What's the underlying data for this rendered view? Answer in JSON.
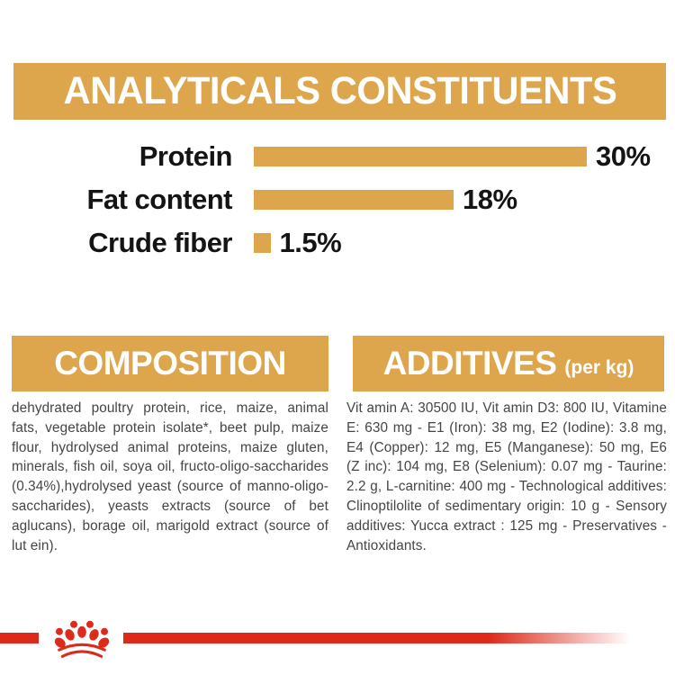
{
  "colors": {
    "gold": "#DDA64C",
    "red": "#DC2A1B",
    "ink": "#141414",
    "body": "#454545"
  },
  "chart_data": {
    "type": "bar",
    "orientation": "horizontal",
    "title": "ANALYTICALS CONSTITUENTS",
    "categories": [
      "Protein",
      "Fat content",
      "Crude fiber"
    ],
    "values": [
      30,
      18,
      1.5
    ],
    "value_labels": [
      "30%",
      "18%",
      "1.5%"
    ],
    "unit": "%",
    "xlim": [
      0,
      30
    ],
    "bar_color": "#DDA64C",
    "grid": false,
    "legend": false
  },
  "composition": {
    "title": "COMPOSITION",
    "body": "dehydrated poultry protein, rice, maize, animal fats, vegetable protein isolate*, beet pulp, maize flour, hydrolysed animal proteins, maize gluten, minerals, fish oil, soya oil, fructo-oligo-saccharides (0.34%),hydrolysed yeast (source of manno-oligo-saccharides), yeasts extracts (source of bet aglucans), borage oil, marigold extract (source of lut ein)."
  },
  "additives": {
    "title": "ADDITIVES",
    "unit": "(per kg)",
    "body": "Vit amin A: 30500 IU, Vit amin D3: 800 IU, Vitamine E: 630 mg - E1 (Iron): 38 mg, E2 (Iodine): 3.8 mg, E4 (Copper): 12 mg, E5 (Manganese): 50 mg, E6 (Z inc): 104 mg, E8 (Selenium): 0.07 mg - Taurine: 2.2 g, L-carnitine: 400 mg - Technological additives: Clinoptilolite of sedimentary origin: 10 g - Sensory additives: Yucca extract : 125 mg - Preservatives -Antioxidants."
  },
  "footer": {
    "logo": "royal-canin-crown"
  }
}
